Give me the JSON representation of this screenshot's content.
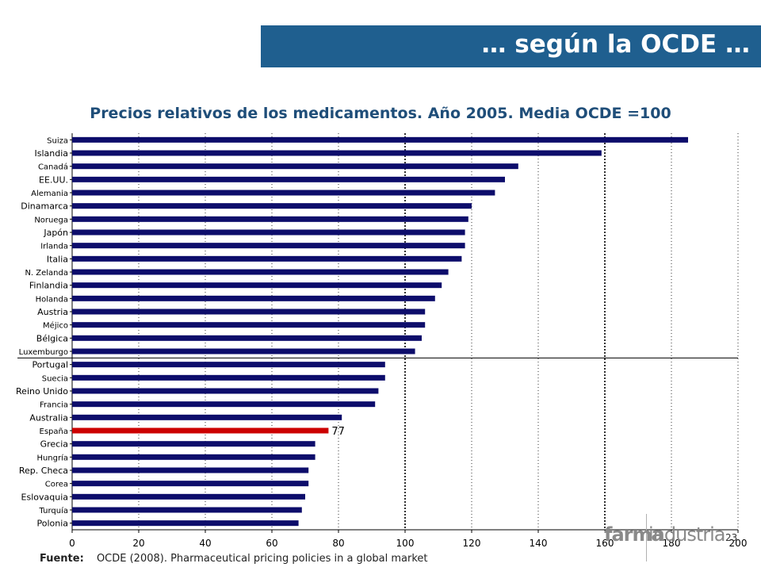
{
  "header": {
    "banner_text": "… según la OCDE …"
  },
  "footer": {
    "source_label": "Fuente:",
    "source_text": "OCDE (2008). Pharmaceutical pricing policies in a global market",
    "page_number": "23",
    "logo_part1": "farma",
    "logo_part2": "industria"
  },
  "colors": {
    "banner": "#1f5f8f",
    "bar": "#0d0d6b",
    "highlight": "#cc0000",
    "title": "#1f4e79"
  },
  "chart_data": {
    "type": "bar",
    "orientation": "horizontal",
    "title": "Precios relativos de los medicamentos. Año 2005. Media OCDE =100",
    "xlim": [
      0,
      200
    ],
    "xticks": [
      0,
      20,
      40,
      60,
      80,
      100,
      120,
      140,
      160,
      180,
      200
    ],
    "grid": "vertical dotted",
    "reference_lines": [
      100,
      160
    ],
    "highlight_category": "España",
    "highlight_label": "77",
    "categories": [
      "Suiza",
      "Islandia",
      "Canadá",
      "EE.UU.",
      "Alemania",
      "Dinamarca",
      "Noruega",
      "Japón",
      "Irlanda",
      "Italia",
      "N. Zelanda",
      "Finlandia",
      "Holanda",
      "Austria",
      "Méjico",
      "Bélgica",
      "Luxemburgo",
      "Portugal",
      "Suecia",
      "Reino Unido",
      "Francia",
      "Australia",
      "España",
      "Grecia",
      "Hungría",
      "Rep. Checa",
      "Corea",
      "Eslovaquia",
      "Turquía",
      "Polonia"
    ],
    "values": [
      185,
      159,
      134,
      130,
      127,
      120,
      119,
      118,
      118,
      117,
      113,
      111,
      109,
      106,
      106,
      105,
      103,
      94,
      94,
      92,
      91,
      81,
      77,
      73,
      73,
      71,
      71,
      70,
      69,
      68
    ]
  }
}
